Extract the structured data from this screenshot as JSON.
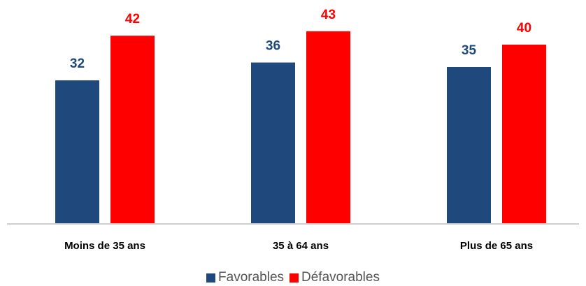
{
  "chart_data": {
    "type": "bar",
    "categories": [
      "Moins de 35 ans",
      "35 à 64 ans",
      "Plus de 65 ans"
    ],
    "series": [
      {
        "name": "Favorables",
        "values": [
          32,
          36,
          35
        ],
        "color": "#1F497D"
      },
      {
        "name": "Défavorables",
        "values": [
          42,
          43,
          40
        ],
        "color": "#FF0000"
      }
    ],
    "ylim": [
      0,
      50
    ],
    "grid": false,
    "legend": "bottom-center",
    "data_labels": true
  }
}
